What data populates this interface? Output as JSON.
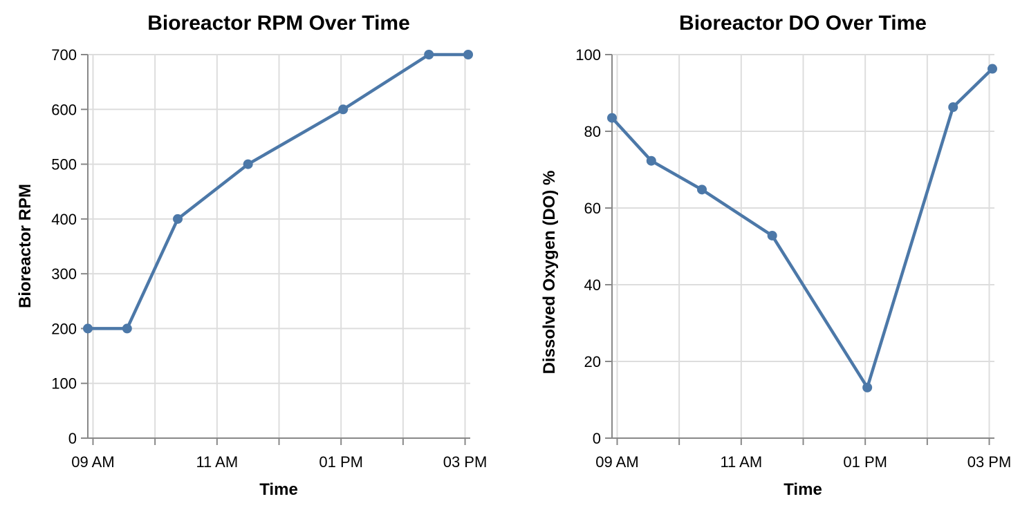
{
  "colors": {
    "series": "#4c78a8",
    "grid": "#dddddd",
    "axis": "#888888"
  },
  "chart_data": [
    {
      "type": "line",
      "title": "Bioreactor RPM Over Time",
      "xlabel": "Time",
      "ylabel": "Bioreactor RPM",
      "x_tick_labels": [
        "09 AM",
        "11 AM",
        "01 PM",
        "03 PM"
      ],
      "y_ticks": [
        0,
        100,
        200,
        300,
        400,
        500,
        600,
        700
      ],
      "ylim": [
        0,
        700
      ],
      "xlim": [
        "08:55",
        "15:05"
      ],
      "grid": true,
      "x": [
        "08:55",
        "09:33",
        "10:22",
        "11:30",
        "13:02",
        "14:25",
        "15:03"
      ],
      "values": [
        200,
        200,
        400,
        500,
        600,
        700,
        700
      ]
    },
    {
      "type": "line",
      "title": "Bioreactor DO Over Time",
      "xlabel": "Time",
      "ylabel": "Dissolved Oxygen (DO) %",
      "x_tick_labels": [
        "09 AM",
        "11 AM",
        "01 PM",
        "03 PM"
      ],
      "y_ticks": [
        0,
        20,
        40,
        60,
        80,
        100
      ],
      "ylim": [
        0,
        100
      ],
      "xlim": [
        "08:55",
        "15:05"
      ],
      "grid": true,
      "x": [
        "08:55",
        "09:33",
        "10:22",
        "11:30",
        "13:02",
        "14:25",
        "15:03"
      ],
      "values": [
        83.5,
        72.3,
        64.8,
        52.8,
        13.2,
        86.3,
        96.3
      ]
    }
  ]
}
